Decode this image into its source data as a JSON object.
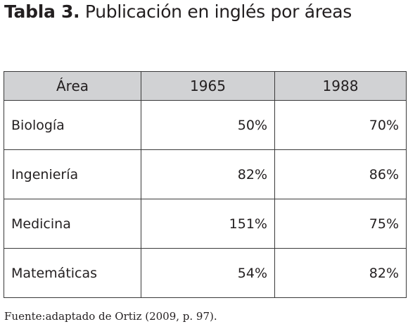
{
  "title": {
    "label": "Tabla 3.",
    "text": "Publicación en inglés por áreas"
  },
  "table": {
    "header": [
      "Área",
      "1965",
      "1988"
    ],
    "rows": [
      [
        "Biología",
        "50%",
        "70%"
      ],
      [
        "Ingeniería",
        "82%",
        "86%"
      ],
      [
        "Medicina",
        "151%",
        "75%"
      ],
      [
        "Matemáticas",
        "54%",
        "82%"
      ]
    ]
  },
  "source": "Fuente:adaptado de Ortiz (2009, p. 97)."
}
